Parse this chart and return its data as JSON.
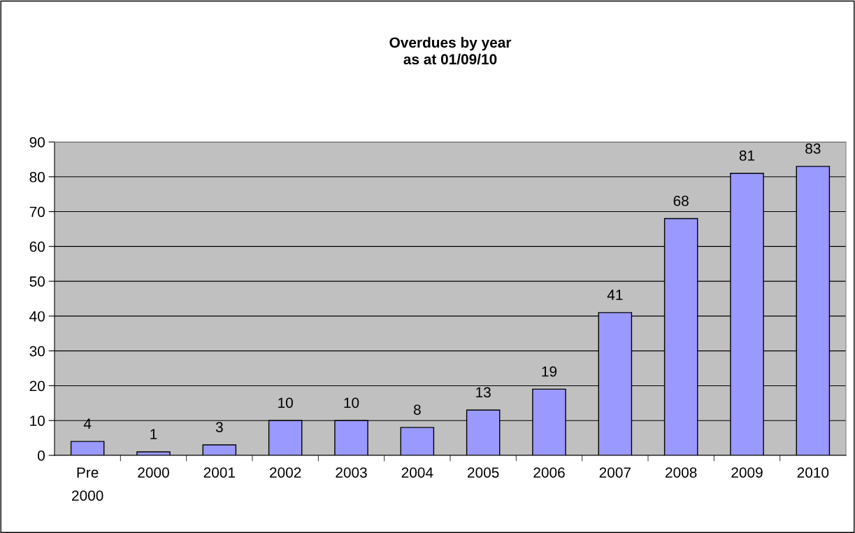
{
  "chart_data": {
    "type": "bar",
    "title": "Overdues by year\nas at 01/09/10",
    "categories": [
      "Pre\n2000",
      "2000",
      "2001",
      "2002",
      "2003",
      "2004",
      "2005",
      "2006",
      "2007",
      "2008",
      "2009",
      "2010"
    ],
    "values": [
      4,
      1,
      3,
      10,
      10,
      8,
      13,
      19,
      41,
      68,
      81,
      83
    ],
    "color": "#9999ff",
    "ylim": [
      0,
      90
    ],
    "yticks": [
      0,
      10,
      20,
      30,
      40,
      50,
      60,
      70,
      80,
      90
    ],
    "grid": "y",
    "data_labels": true
  }
}
